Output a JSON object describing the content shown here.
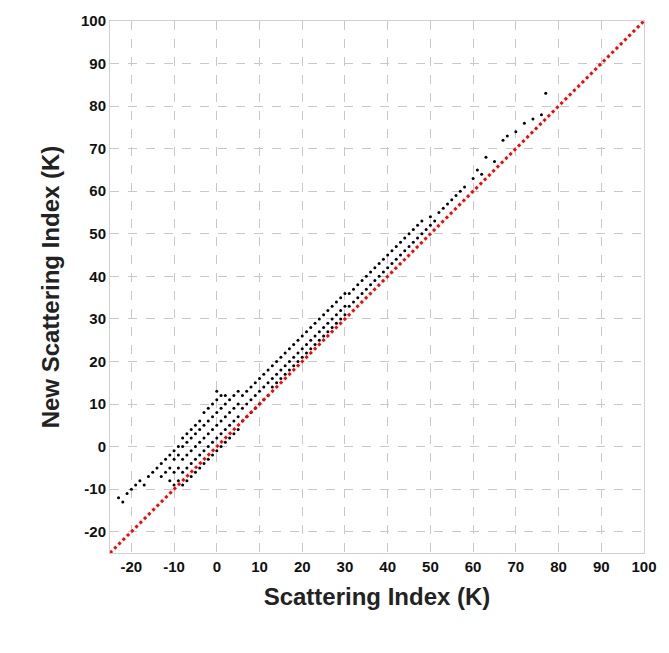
{
  "chart_data": {
    "type": "scatter",
    "x_label": "Scattering Index (K)",
    "y_label": "New Scattering Index (K)",
    "xlim": [
      -25,
      100
    ],
    "ylim": [
      -25,
      100
    ],
    "xticks": [
      -20,
      -10,
      0,
      10,
      20,
      30,
      40,
      50,
      60,
      70,
      80,
      90,
      100
    ],
    "yticks": [
      -20,
      -10,
      0,
      10,
      20,
      30,
      40,
      50,
      60,
      70,
      80,
      90,
      100
    ],
    "grid": true,
    "series": [
      {
        "type": "scatter",
        "color": "#000000",
        "marker": "circle",
        "x": [
          -23,
          -22,
          -21,
          -20,
          -19,
          -18,
          -17,
          -16,
          -15,
          -14,
          -13,
          -13,
          -12,
          -12,
          -11,
          -11,
          -11,
          -10,
          -10,
          -10,
          -10,
          -9,
          -9,
          -9,
          -9,
          -8,
          -8,
          -8,
          -8,
          -8,
          -7,
          -7,
          -7,
          -7,
          -7,
          -6,
          -6,
          -6,
          -6,
          -6,
          -5,
          -5,
          -5,
          -5,
          -5,
          -4,
          -4,
          -4,
          -4,
          -4,
          -3,
          -3,
          -3,
          -3,
          -3,
          -2,
          -2,
          -2,
          -2,
          -2,
          -1,
          -1,
          -1,
          -1,
          -1,
          0,
          0,
          0,
          0,
          0,
          0,
          1,
          1,
          1,
          1,
          1,
          2,
          2,
          2,
          2,
          2,
          3,
          3,
          3,
          3,
          4,
          4,
          4,
          4,
          5,
          5,
          5,
          5,
          6,
          6,
          6,
          7,
          7,
          7,
          8,
          8,
          8,
          9,
          9,
          9,
          10,
          10,
          10,
          11,
          11,
          11,
          12,
          12,
          12,
          13,
          13,
          13,
          14,
          14,
          14,
          15,
          15,
          15,
          16,
          16,
          16,
          17,
          17,
          17,
          18,
          18,
          18,
          19,
          19,
          19,
          20,
          20,
          20,
          21,
          21,
          21,
          22,
          22,
          22,
          23,
          23,
          23,
          24,
          24,
          24,
          25,
          25,
          25,
          26,
          26,
          26,
          27,
          27,
          27,
          28,
          28,
          28,
          29,
          29,
          29,
          30,
          30,
          30,
          31,
          31,
          32,
          32,
          33,
          33,
          34,
          34,
          35,
          35,
          36,
          36,
          37,
          37,
          38,
          38,
          39,
          39,
          40,
          40,
          41,
          41,
          42,
          42,
          43,
          43,
          44,
          44,
          45,
          45,
          46,
          46,
          47,
          47,
          48,
          48,
          49,
          50,
          50,
          51,
          52,
          53,
          54,
          55,
          56,
          57,
          58,
          60,
          61,
          62,
          63,
          65,
          67,
          68,
          70,
          72,
          74,
          76,
          77
        ],
        "values": [
          -12,
          -13,
          -11,
          -10,
          -9,
          -8,
          -9,
          -7,
          -6,
          -5,
          -4,
          -7,
          -6,
          -3,
          -5,
          -2,
          -8,
          -9,
          -6,
          -3,
          -1,
          -8,
          -5,
          -2,
          0,
          -9,
          -6,
          -3,
          0,
          2,
          -8,
          -5,
          -2,
          1,
          3,
          -7,
          -4,
          -1,
          2,
          4,
          -6,
          -3,
          0,
          3,
          5,
          -5,
          -2,
          1,
          4,
          6,
          -4,
          -1,
          2,
          5,
          8,
          -3,
          0,
          3,
          6,
          9,
          -2,
          1,
          4,
          7,
          10,
          -1,
          2,
          5,
          8,
          11,
          13,
          0,
          3,
          6,
          9,
          12,
          1,
          4,
          7,
          10,
          12,
          2,
          5,
          8,
          11,
          3,
          6,
          9,
          12,
          4,
          7,
          10,
          13,
          6,
          9,
          12,
          7,
          10,
          13,
          8,
          11,
          14,
          9,
          12,
          15,
          10,
          13,
          16,
          11,
          14,
          17,
          12,
          15,
          18,
          14,
          16,
          19,
          15,
          17,
          20,
          16,
          18,
          21,
          17,
          19,
          22,
          18,
          20,
          23,
          19,
          21,
          24,
          20,
          22,
          25,
          21,
          23,
          26,
          22,
          24,
          27,
          23,
          25,
          28,
          24,
          26,
          29,
          25,
          27,
          30,
          26,
          28,
          31,
          27,
          29,
          32,
          28,
          30,
          33,
          29,
          31,
          34,
          30,
          32,
          35,
          31,
          33,
          36,
          33,
          36,
          34,
          37,
          35,
          38,
          36,
          39,
          37,
          40,
          38,
          41,
          39,
          42,
          40,
          43,
          41,
          44,
          42,
          45,
          43,
          46,
          44,
          47,
          45,
          48,
          46,
          49,
          47,
          50,
          48,
          51,
          49,
          52,
          50,
          53,
          51,
          52,
          54,
          53,
          55,
          56,
          57,
          58,
          59,
          60,
          61,
          63,
          65,
          64,
          68,
          67,
          72,
          73,
          74,
          76,
          77,
          78,
          83
        ]
      },
      {
        "type": "line",
        "color": "#ff0000",
        "line_style": "dotted",
        "x": [
          -25,
          100
        ],
        "values": [
          -25,
          100
        ]
      }
    ]
  }
}
